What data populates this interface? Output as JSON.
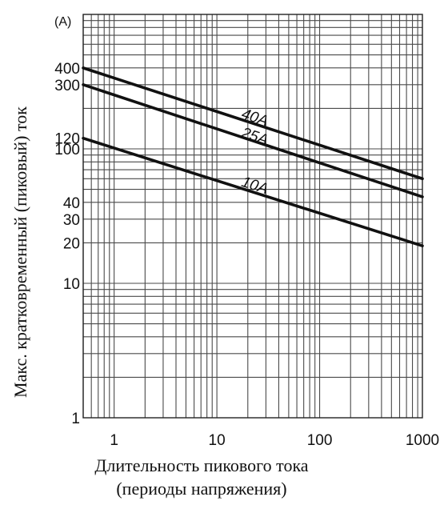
{
  "chart_data": {
    "type": "line",
    "x_scale": "log",
    "y_scale": "log",
    "xlim": [
      0.5,
      1000
    ],
    "ylim": [
      1,
      1000
    ],
    "y_unit": "(A)",
    "xlabel": [
      "Длительность пикового тока",
      "(периоды напряжения)"
    ],
    "ylabel": "Макс. кратковременный (пиковый) ток",
    "x_ticks": [
      {
        "value": 1,
        "label": "1"
      },
      {
        "value": 10,
        "label": "10"
      },
      {
        "value": 100,
        "label": "100"
      },
      {
        "value": 1000,
        "label": "1000"
      }
    ],
    "y_ticks": [
      {
        "value": 1,
        "label": "1"
      },
      {
        "value": 10,
        "label": "10"
      },
      {
        "value": 20,
        "label": "20"
      },
      {
        "value": 30,
        "label": "30"
      },
      {
        "value": 40,
        "label": "40"
      },
      {
        "value": 100,
        "label": "100"
      },
      {
        "value": 120,
        "label": "120"
      },
      {
        "value": 300,
        "label": "300"
      },
      {
        "value": 400,
        "label": "400"
      }
    ],
    "grid": true,
    "series": [
      {
        "name": "40A",
        "x": [
          0.5,
          1000
        ],
        "y": [
          400,
          60
        ],
        "label_at": [
          17,
          170
        ]
      },
      {
        "name": "25A",
        "x": [
          0.5,
          1000
        ],
        "y": [
          300,
          44
        ],
        "label_at": [
          17,
          123
        ]
      },
      {
        "name": "10A",
        "x": [
          0.5,
          1000
        ],
        "y": [
          120,
          19
        ],
        "label_at": [
          17,
          53
        ]
      }
    ]
  }
}
